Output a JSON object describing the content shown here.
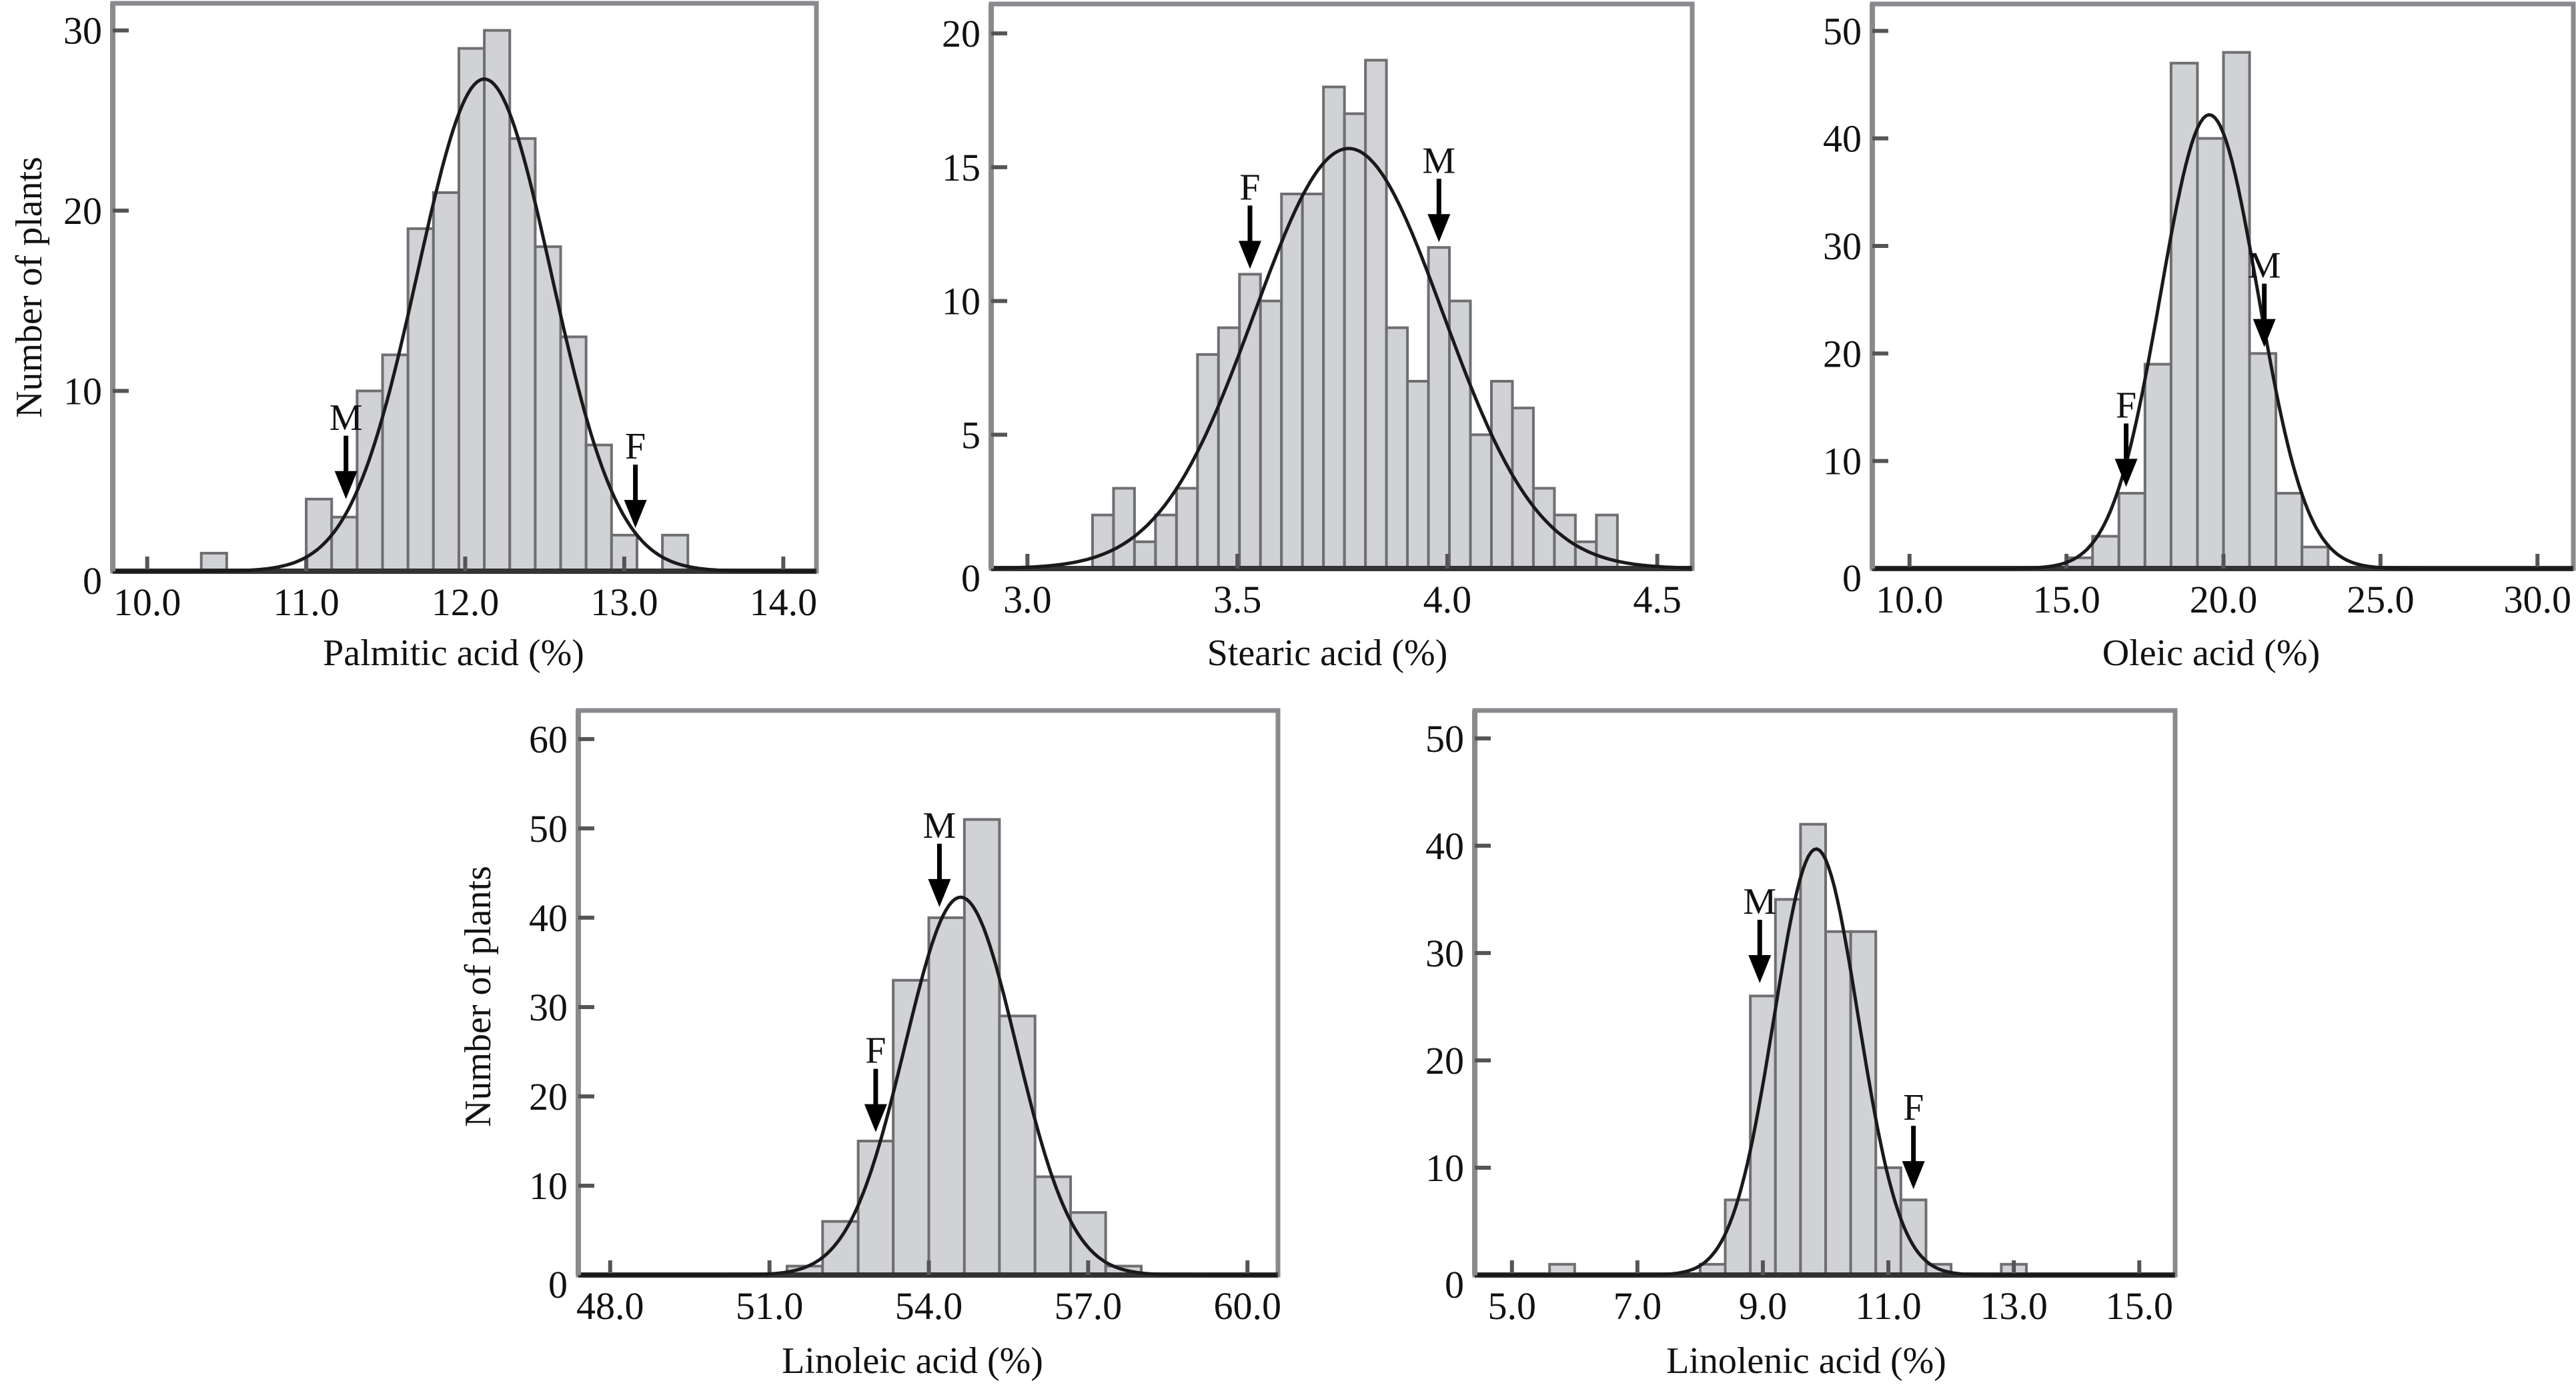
{
  "figure": {
    "bar_fill": "#d1d2d6",
    "bar_stroke": "#6f6f72",
    "frame_color": "#8a8a8e",
    "curve_color": "#1a1a1a",
    "arrow_color": "#000000"
  },
  "chart_data": [
    {
      "id": "palmitic",
      "type": "bar",
      "subtype": "histogram with fitted normal curve",
      "xlabel": "Palmitic acid (%)",
      "ylabel": "Number of plants",
      "xlim": [
        9.8,
        14.2
      ],
      "ylim": [
        0,
        31.5
      ],
      "xticks": [
        "10.0",
        "11.0",
        "12.0",
        "13.0",
        "14.0"
      ],
      "xtick_values": [
        10,
        11,
        12,
        13,
        14
      ],
      "yticks": [
        "0",
        "10",
        "20",
        "30"
      ],
      "ytick_values": [
        0,
        10,
        20,
        30
      ],
      "bins": [
        {
          "x0": 10.34,
          "x1": 10.5,
          "count": 1
        },
        {
          "x0": 11.0,
          "x1": 11.16,
          "count": 4
        },
        {
          "x0": 11.16,
          "x1": 11.32,
          "count": 3
        },
        {
          "x0": 11.32,
          "x1": 11.48,
          "count": 10
        },
        {
          "x0": 11.48,
          "x1": 11.64,
          "count": 12
        },
        {
          "x0": 11.64,
          "x1": 11.8,
          "count": 19
        },
        {
          "x0": 11.8,
          "x1": 11.96,
          "count": 21
        },
        {
          "x0": 11.96,
          "x1": 12.12,
          "count": 29
        },
        {
          "x0": 12.12,
          "x1": 12.28,
          "count": 30
        },
        {
          "x0": 12.28,
          "x1": 12.44,
          "count": 24
        },
        {
          "x0": 12.44,
          "x1": 12.6,
          "count": 18
        },
        {
          "x0": 12.6,
          "x1": 12.76,
          "count": 13
        },
        {
          "x0": 12.76,
          "x1": 12.92,
          "count": 7
        },
        {
          "x0": 12.92,
          "x1": 13.08,
          "count": 2
        },
        {
          "x0": 13.24,
          "x1": 13.4,
          "count": 2
        }
      ],
      "fit": {
        "mean": 12.12,
        "sd": 0.42,
        "peak": 27.3
      },
      "markers": [
        {
          "label": "M",
          "x": 11.25,
          "y": 4.0
        },
        {
          "label": "F",
          "x": 13.07,
          "y": 2.4
        }
      ],
      "show_ylabel": true
    },
    {
      "id": "stearic",
      "type": "bar",
      "subtype": "histogram with fitted normal curve",
      "xlabel": "Stearic acid (%)",
      "ylabel": "",
      "xlim": [
        2.92,
        4.58
      ],
      "ylim": [
        0,
        21.1
      ],
      "xticks": [
        "3.0",
        "3.5",
        "4.0",
        "4.5"
      ],
      "xtick_values": [
        3.0,
        3.5,
        4.0,
        4.5
      ],
      "yticks": [
        "0",
        "5",
        "10",
        "15",
        "20"
      ],
      "ytick_values": [
        0,
        5,
        10,
        15,
        20
      ],
      "bins": [
        {
          "x0": 3.155,
          "x1": 3.205,
          "count": 2
        },
        {
          "x0": 3.205,
          "x1": 3.255,
          "count": 3
        },
        {
          "x0": 3.255,
          "x1": 3.305,
          "count": 1
        },
        {
          "x0": 3.305,
          "x1": 3.355,
          "count": 2
        },
        {
          "x0": 3.355,
          "x1": 3.405,
          "count": 3
        },
        {
          "x0": 3.405,
          "x1": 3.455,
          "count": 8
        },
        {
          "x0": 3.455,
          "x1": 3.505,
          "count": 9
        },
        {
          "x0": 3.505,
          "x1": 3.555,
          "count": 11
        },
        {
          "x0": 3.555,
          "x1": 3.605,
          "count": 10
        },
        {
          "x0": 3.605,
          "x1": 3.655,
          "count": 14
        },
        {
          "x0": 3.655,
          "x1": 3.705,
          "count": 14
        },
        {
          "x0": 3.705,
          "x1": 3.755,
          "count": 18
        },
        {
          "x0": 3.755,
          "x1": 3.805,
          "count": 17
        },
        {
          "x0": 3.805,
          "x1": 3.855,
          "count": 19
        },
        {
          "x0": 3.855,
          "x1": 3.905,
          "count": 9
        },
        {
          "x0": 3.905,
          "x1": 3.955,
          "count": 7
        },
        {
          "x0": 3.955,
          "x1": 4.005,
          "count": 12
        },
        {
          "x0": 4.005,
          "x1": 4.055,
          "count": 10
        },
        {
          "x0": 4.055,
          "x1": 4.105,
          "count": 5
        },
        {
          "x0": 4.105,
          "x1": 4.155,
          "count": 7
        },
        {
          "x0": 4.155,
          "x1": 4.205,
          "count": 6
        },
        {
          "x0": 4.205,
          "x1": 4.255,
          "count": 3
        },
        {
          "x0": 4.255,
          "x1": 4.305,
          "count": 2
        },
        {
          "x0": 4.305,
          "x1": 4.355,
          "count": 1
        },
        {
          "x0": 4.355,
          "x1": 4.405,
          "count": 2
        }
      ],
      "fit": {
        "mean": 3.765,
        "sd": 0.225,
        "peak": 15.7
      },
      "markers": [
        {
          "label": "F",
          "x": 3.53,
          "y": 11.2
        },
        {
          "label": "M",
          "x": 3.98,
          "y": 12.2
        }
      ],
      "show_ylabel": false
    },
    {
      "id": "oleic",
      "type": "bar",
      "subtype": "histogram with fitted normal curve",
      "xlabel": "Oleic acid (%)",
      "ylabel": "",
      "xlim": [
        8.9,
        31.1
      ],
      "ylim": [
        0,
        52.5
      ],
      "xticks": [
        "10.0",
        "15.0",
        "20.0",
        "25.0",
        "30.0"
      ],
      "xtick_values": [
        10,
        15,
        20,
        25,
        30
      ],
      "yticks": [
        "0",
        "10",
        "20",
        "30",
        "40",
        "50"
      ],
      "ytick_values": [
        0,
        10,
        20,
        30,
        40,
        50
      ],
      "bins": [
        {
          "x0": 15.0,
          "x1": 15.83,
          "count": 1
        },
        {
          "x0": 15.83,
          "x1": 16.67,
          "count": 3
        },
        {
          "x0": 16.67,
          "x1": 17.5,
          "count": 7
        },
        {
          "x0": 17.5,
          "x1": 18.33,
          "count": 19
        },
        {
          "x0": 18.33,
          "x1": 19.17,
          "count": 47
        },
        {
          "x0": 19.17,
          "x1": 20.0,
          "count": 40
        },
        {
          "x0": 20.0,
          "x1": 20.83,
          "count": 48
        },
        {
          "x0": 20.83,
          "x1": 21.67,
          "count": 20
        },
        {
          "x0": 21.67,
          "x1": 22.5,
          "count": 7
        },
        {
          "x0": 22.5,
          "x1": 23.33,
          "count": 2
        }
      ],
      "fit": {
        "mean": 19.55,
        "sd": 1.55,
        "peak": 42.2
      },
      "markers": [
        {
          "label": "F",
          "x": 16.9,
          "y": 7.6
        },
        {
          "label": "M",
          "x": 21.3,
          "y": 20.6
        }
      ],
      "show_ylabel": false
    },
    {
      "id": "linoleic",
      "type": "bar",
      "subtype": "histogram with fitted normal curve",
      "xlabel": "Linoleic acid (%)",
      "ylabel": "Number of plants",
      "xlim": [
        47.45,
        60.55
      ],
      "ylim": [
        0,
        63.2
      ],
      "xticks": [
        "48.0",
        "51.0",
        "54.0",
        "57.0",
        "60.0"
      ],
      "xtick_values": [
        48,
        51,
        54,
        57,
        60
      ],
      "yticks": [
        "0",
        "10",
        "20",
        "30",
        "40",
        "50",
        "60"
      ],
      "ytick_values": [
        0,
        10,
        20,
        30,
        40,
        50,
        60
      ],
      "bins": [
        {
          "x0": 51.33,
          "x1": 52.0,
          "count": 1
        },
        {
          "x0": 52.0,
          "x1": 52.67,
          "count": 6
        },
        {
          "x0": 52.67,
          "x1": 53.33,
          "count": 15
        },
        {
          "x0": 53.33,
          "x1": 54.0,
          "count": 33
        },
        {
          "x0": 54.0,
          "x1": 54.67,
          "count": 40
        },
        {
          "x0": 54.67,
          "x1": 55.33,
          "count": 51
        },
        {
          "x0": 55.33,
          "x1": 56.0,
          "count": 29
        },
        {
          "x0": 56.0,
          "x1": 56.67,
          "count": 11
        },
        {
          "x0": 56.67,
          "x1": 57.33,
          "count": 7
        },
        {
          "x0": 57.33,
          "x1": 58.0,
          "count": 1
        }
      ],
      "fit": {
        "mean": 54.6,
        "sd": 1.05,
        "peak": 42.3
      },
      "markers": [
        {
          "label": "F",
          "x": 53.0,
          "y": 16.0
        },
        {
          "label": "M",
          "x": 54.2,
          "y": 41.2
        }
      ],
      "show_ylabel": true
    },
    {
      "id": "linolenic",
      "type": "bar",
      "subtype": "histogram with fitted normal curve",
      "xlabel": "Linolenic acid (%)",
      "ylabel": "",
      "xlim": [
        4.45,
        15.55
      ],
      "ylim": [
        0,
        52.6
      ],
      "xticks": [
        "5.0",
        "7.0",
        "9.0",
        "11.0",
        "13.0",
        "15.0"
      ],
      "xtick_values": [
        5,
        7,
        9,
        11,
        13,
        15
      ],
      "yticks": [
        "0",
        "10",
        "20",
        "30",
        "40",
        "50"
      ],
      "ytick_values": [
        0,
        10,
        20,
        30,
        40,
        50
      ],
      "bins": [
        {
          "x0": 5.6,
          "x1": 6.0,
          "count": 1
        },
        {
          "x0": 8.0,
          "x1": 8.4,
          "count": 1
        },
        {
          "x0": 8.4,
          "x1": 8.8,
          "count": 7
        },
        {
          "x0": 8.8,
          "x1": 9.2,
          "count": 26
        },
        {
          "x0": 9.2,
          "x1": 9.6,
          "count": 35
        },
        {
          "x0": 9.6,
          "x1": 10.0,
          "count": 42
        },
        {
          "x0": 10.0,
          "x1": 10.4,
          "count": 32
        },
        {
          "x0": 10.4,
          "x1": 10.8,
          "count": 32
        },
        {
          "x0": 10.8,
          "x1": 11.2,
          "count": 10
        },
        {
          "x0": 11.2,
          "x1": 11.6,
          "count": 7
        },
        {
          "x0": 11.6,
          "x1": 12.0,
          "count": 1
        },
        {
          "x0": 12.8,
          "x1": 13.2,
          "count": 1
        }
      ],
      "fit": {
        "mean": 9.85,
        "sd": 0.67,
        "peak": 39.7
      },
      "markers": [
        {
          "label": "M",
          "x": 8.95,
          "y": 27.2
        },
        {
          "label": "F",
          "x": 11.4,
          "y": 8.0
        }
      ],
      "show_ylabel": false
    }
  ]
}
